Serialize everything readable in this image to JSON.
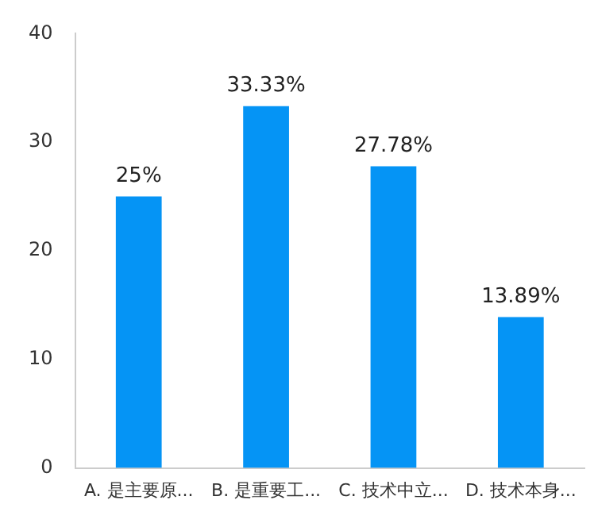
{
  "chart_data": {
    "type": "bar",
    "categories": [
      "A. 是主要原...",
      "B. 是重要工...",
      "C. 技术中立...",
      "D. 技术本身..."
    ],
    "values": [
      25,
      33.33,
      27.78,
      13.89
    ],
    "value_labels": [
      "25%",
      "33.33%",
      "27.78%",
      "13.89%"
    ],
    "color": "#0594f5",
    "ylim": [
      0,
      40
    ],
    "yticks": [
      0,
      10,
      20,
      30,
      40
    ],
    "grid": false,
    "legend": false
  }
}
